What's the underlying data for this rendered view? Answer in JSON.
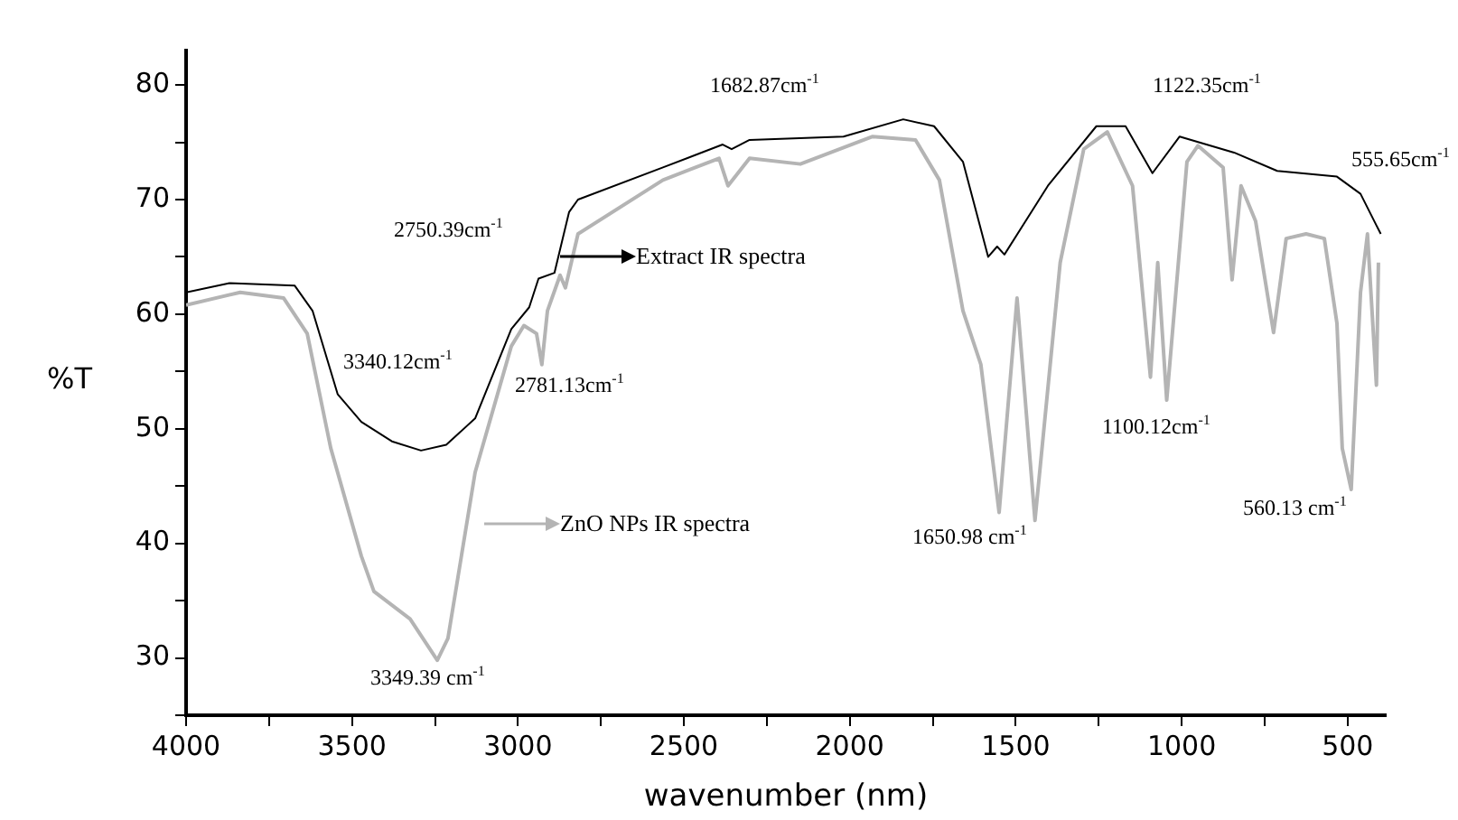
{
  "chart_data": {
    "type": "line",
    "xlabel": "wavenumber (nm)",
    "ylabel": "%T",
    "xlim": [
      4000,
      385
    ],
    "ylim": [
      25,
      83
    ],
    "xticks": [
      4000,
      {
        "value": 3750,
        "label": null
      },
      3500,
      {
        "value": 3250,
        "label": null
      },
      3000,
      {
        "value": 2750,
        "label": null
      },
      2500,
      {
        "value": 2250,
        "label": null
      },
      2000,
      {
        "value": 1750,
        "label": null
      },
      1500,
      {
        "value": 1250,
        "label": null
      },
      1000,
      {
        "value": 750,
        "label": null
      },
      500
    ],
    "yticks": [
      {
        "value": 25,
        "label": null
      },
      30,
      {
        "value": 35,
        "label": null
      },
      40,
      {
        "value": 45,
        "label": null
      },
      50,
      {
        "value": 55,
        "label": null
      },
      60,
      {
        "value": 65,
        "label": null
      },
      70,
      {
        "value": 75,
        "label": null
      },
      80
    ],
    "grid": false,
    "legend": "center",
    "marker": "none",
    "line_style": "solid",
    "series": [
      {
        "name": "Extract IR spectra",
        "color": "#000000",
        "x": [
          4000,
          3869,
          3673,
          3619,
          3543,
          3472,
          3380,
          3292,
          3216,
          3129,
          3020,
          2966,
          2938,
          2890,
          2846,
          2819,
          2563,
          2383,
          2356,
          2302,
          2019,
          1839,
          1746,
          1659,
          1583,
          1556,
          1534,
          1403,
          1257,
          1169,
          1088,
          1006,
          842,
          712,
          532,
          461,
          400
        ],
        "values": [
          61.9,
          62.7,
          62.5,
          60.3,
          53,
          50.6,
          48.9,
          48.1,
          48.6,
          50.9,
          58.7,
          60.6,
          63.1,
          63.6,
          68.9,
          70,
          72.8,
          74.8,
          74.4,
          75.2,
          75.5,
          77,
          76.4,
          73.3,
          65,
          65.9,
          65.2,
          71.2,
          76.4,
          76.4,
          72.3,
          75.5,
          74.1,
          72.5,
          72,
          70.5,
          67
        ]
      },
      {
        "name": "ZnO NPs IR spectra",
        "color": "#b4b4b4",
        "x": [
          4000,
          3837,
          3706,
          3635,
          3564,
          3472,
          3434,
          3325,
          3243,
          3211,
          3129,
          3020,
          2982,
          2944,
          2928,
          2911,
          2873,
          2857,
          2819,
          2563,
          2394,
          2367,
          2302,
          2149,
          1931,
          1802,
          1730,
          1659,
          1605,
          1550,
          1496,
          1442,
          1366,
          1295,
          1224,
          1148,
          1094,
          1072,
          1045,
          984,
          951,
          875,
          848,
          821,
          777,
          723,
          685,
          625,
          570,
          532,
          516,
          489,
          461,
          440,
          413,
          407
        ],
        "values": [
          60.8,
          61.9,
          61.4,
          58.3,
          48.3,
          38.9,
          35.8,
          33.4,
          29.8,
          31.7,
          46.2,
          57.2,
          59,
          58.3,
          55.6,
          60.3,
          63.4,
          62.3,
          67,
          71.7,
          73.6,
          71.2,
          73.6,
          73.1,
          75.5,
          75.2,
          71.7,
          60.3,
          55.6,
          42.7,
          61.4,
          42,
          64.5,
          74.4,
          75.9,
          71.2,
          54.5,
          64.5,
          52.5,
          73.3,
          74.7,
          72.8,
          63,
          71.2,
          68.1,
          58.4,
          66.6,
          67,
          66.6,
          59.2,
          48.3,
          44.7,
          61.9,
          67,
          53.8,
          64.5
        ]
      }
    ],
    "annotations": [
      "1682.87cm$^{-1}$",
      "1122.35cm$^{-1}$",
      "555.65cm$^{-1}$",
      "2750.39cm$^{-1}$",
      "3340.12cm$^{-1}$",
      "2781.13cm$^{-1}$",
      "3349.39 cm$^{-1}$",
      "1650.98 cm$^{-1}$",
      "1100.12cm$^{-1}$",
      "560.13 cm$^{-1}$"
    ]
  }
}
